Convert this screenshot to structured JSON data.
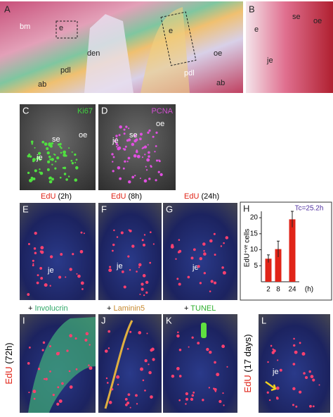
{
  "panels": {
    "A": {
      "label": "A",
      "annotations": [
        "bm",
        "e",
        "den",
        "pdl",
        "ab",
        "e",
        "oe",
        "pdl",
        "ab"
      ]
    },
    "B": {
      "label": "B",
      "annotations": [
        "e",
        "se",
        "oe",
        "je"
      ]
    },
    "C": {
      "label": "C",
      "stain": "Ki67",
      "annotations": [
        "oe",
        "se",
        "je"
      ]
    },
    "D": {
      "label": "D",
      "stain": "PCNA",
      "annotations": [
        "oe",
        "se",
        "je"
      ]
    },
    "E": {
      "label": "E",
      "annotations": [
        "je"
      ]
    },
    "F": {
      "label": "F",
      "annotations": [
        "je"
      ]
    },
    "G": {
      "label": "G",
      "annotations": [
        "je"
      ]
    },
    "H": {
      "label": "H"
    },
    "I": {
      "label": "I"
    },
    "J": {
      "label": "J"
    },
    "K": {
      "label": "K"
    },
    "L": {
      "label": "L",
      "annotations": [
        "je"
      ]
    }
  },
  "edu_headers": [
    {
      "marker": "EdU",
      "time": "(2h)"
    },
    {
      "marker": "EdU",
      "time": "(8h)"
    },
    {
      "marker": "EdU",
      "time": "(24h)"
    }
  ],
  "stain_headers": [
    {
      "prefix": "+",
      "stain": "Involucrin"
    },
    {
      "prefix": "+",
      "stain": "Laminin5"
    },
    {
      "prefix": "+",
      "stain": "TUNEL"
    }
  ],
  "side_labels": [
    {
      "marker": "EdU",
      "time": "(72h)"
    },
    {
      "marker": "EdU",
      "time": "(17 days)"
    }
  ],
  "chart_data": {
    "type": "bar",
    "ylabel": "EdU⁺ᵛᵉ cells",
    "xlabel": "(h)",
    "annotation": "Tc=25.2h",
    "categories": [
      "2",
      "8",
      "24"
    ],
    "values": [
      7.2,
      10.2,
      19.5
    ],
    "errors": [
      1.2,
      2.5,
      2.5
    ],
    "color": "#e02418",
    "ylim": [
      0,
      22
    ],
    "yticks": [
      5,
      10,
      15,
      20
    ]
  }
}
